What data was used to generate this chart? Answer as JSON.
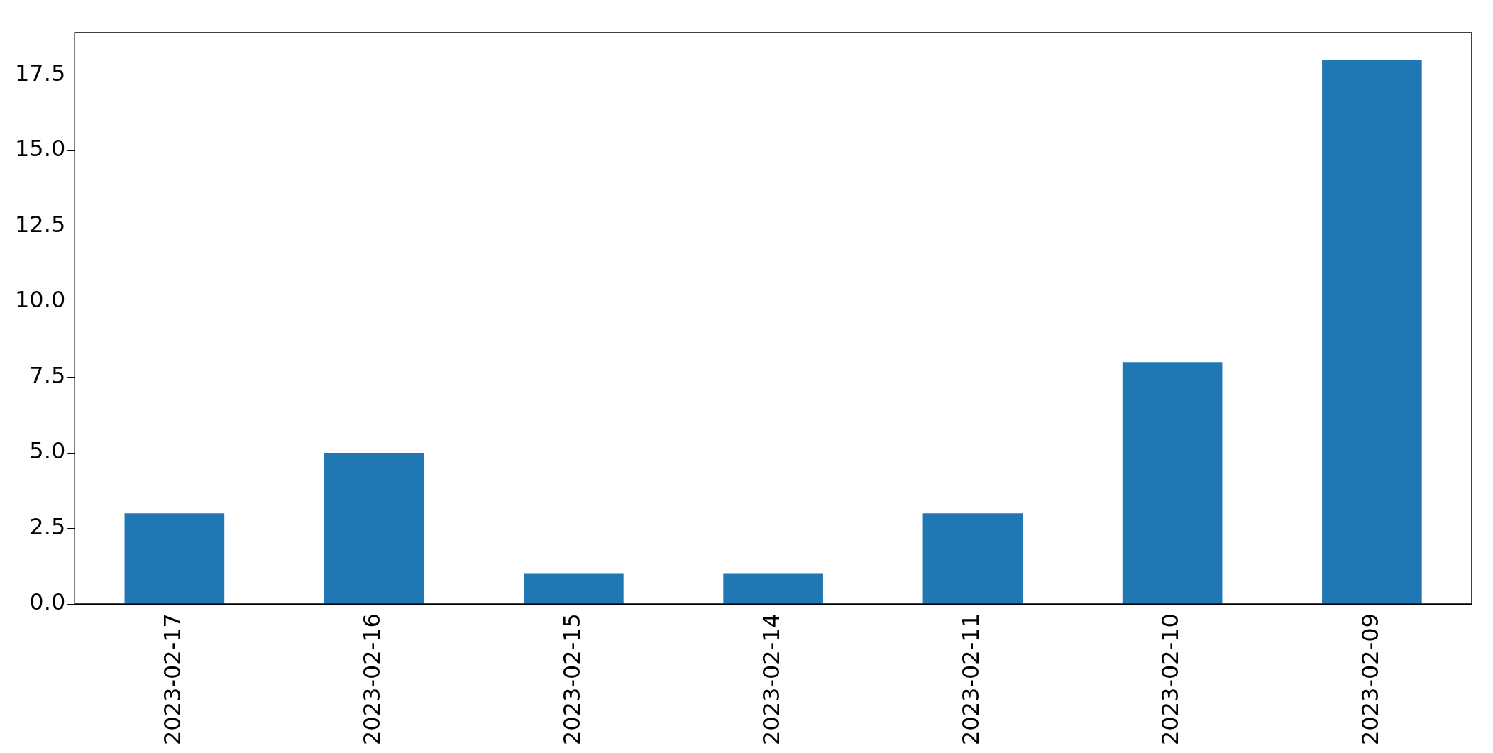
{
  "chart_data": {
    "type": "bar",
    "categories": [
      "2023-02-17",
      "2023-02-16",
      "2023-02-15",
      "2023-02-14",
      "2023-02-11",
      "2023-02-10",
      "2023-02-09"
    ],
    "values": [
      3,
      5,
      1,
      1,
      3,
      8,
      18
    ],
    "color": "#1f77b4",
    "ylim": [
      0,
      18.9
    ],
    "yticks": [
      {
        "value": 0,
        "label": "0.0"
      },
      {
        "value": 2.5,
        "label": "2.5"
      },
      {
        "value": 5,
        "label": "5.0"
      },
      {
        "value": 7.5,
        "label": "7.5"
      },
      {
        "value": 10,
        "label": "10.0"
      },
      {
        "value": 12.5,
        "label": "12.5"
      },
      {
        "value": 15,
        "label": "15.0"
      },
      {
        "value": 17.5,
        "label": "17.5"
      }
    ],
    "grid": false,
    "legend": false
  }
}
